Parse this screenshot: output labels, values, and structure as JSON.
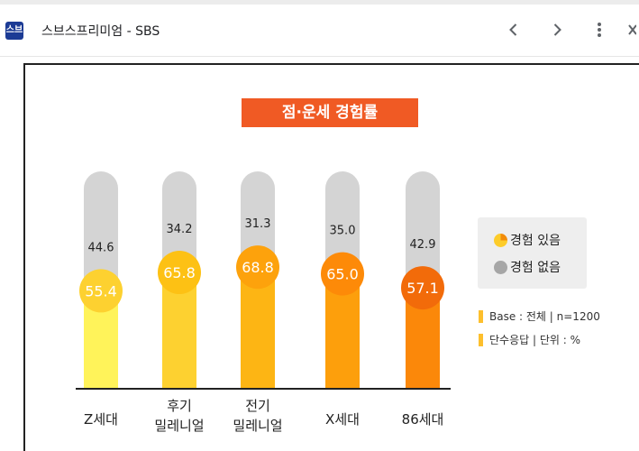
{
  "window": {
    "title": "스브스프리미엄 - SBS",
    "icon_text": "스브"
  },
  "nav": {
    "back_icon": "chevron-left-icon",
    "forward_icon": "chevron-right-icon",
    "more_icon": "more-vert-icon",
    "close_icon": "close-icon"
  },
  "chart_data": {
    "type": "bar",
    "title": "점·운세 경험률",
    "categories": [
      "Z세대",
      "후기\n밀레니얼",
      "전기\n밀레니얼",
      "X세대",
      "86세대"
    ],
    "series": [
      {
        "name": "경험 있음",
        "values": [
          55.4,
          65.8,
          68.8,
          65.0,
          57.1
        ]
      },
      {
        "name": "경험 없음",
        "values": [
          44.6,
          34.2,
          31.3,
          35.0,
          42.9
        ]
      }
    ],
    "stacked": true,
    "colors": [
      "#fff35a",
      "#fdd130",
      "#fdb514",
      "#fd9f0c",
      "#fb880a"
    ],
    "circle_colors": [
      "#fdd130",
      "#fdc114",
      "#fda20c",
      "#fd8a08",
      "#f26b0a"
    ],
    "gray_color": "#d4d4d4",
    "legend": [
      "경험 있음",
      "경험 없음"
    ],
    "notes": [
      "Base : 전체 | n=1200",
      "단수응답 | 단위 : %"
    ]
  }
}
